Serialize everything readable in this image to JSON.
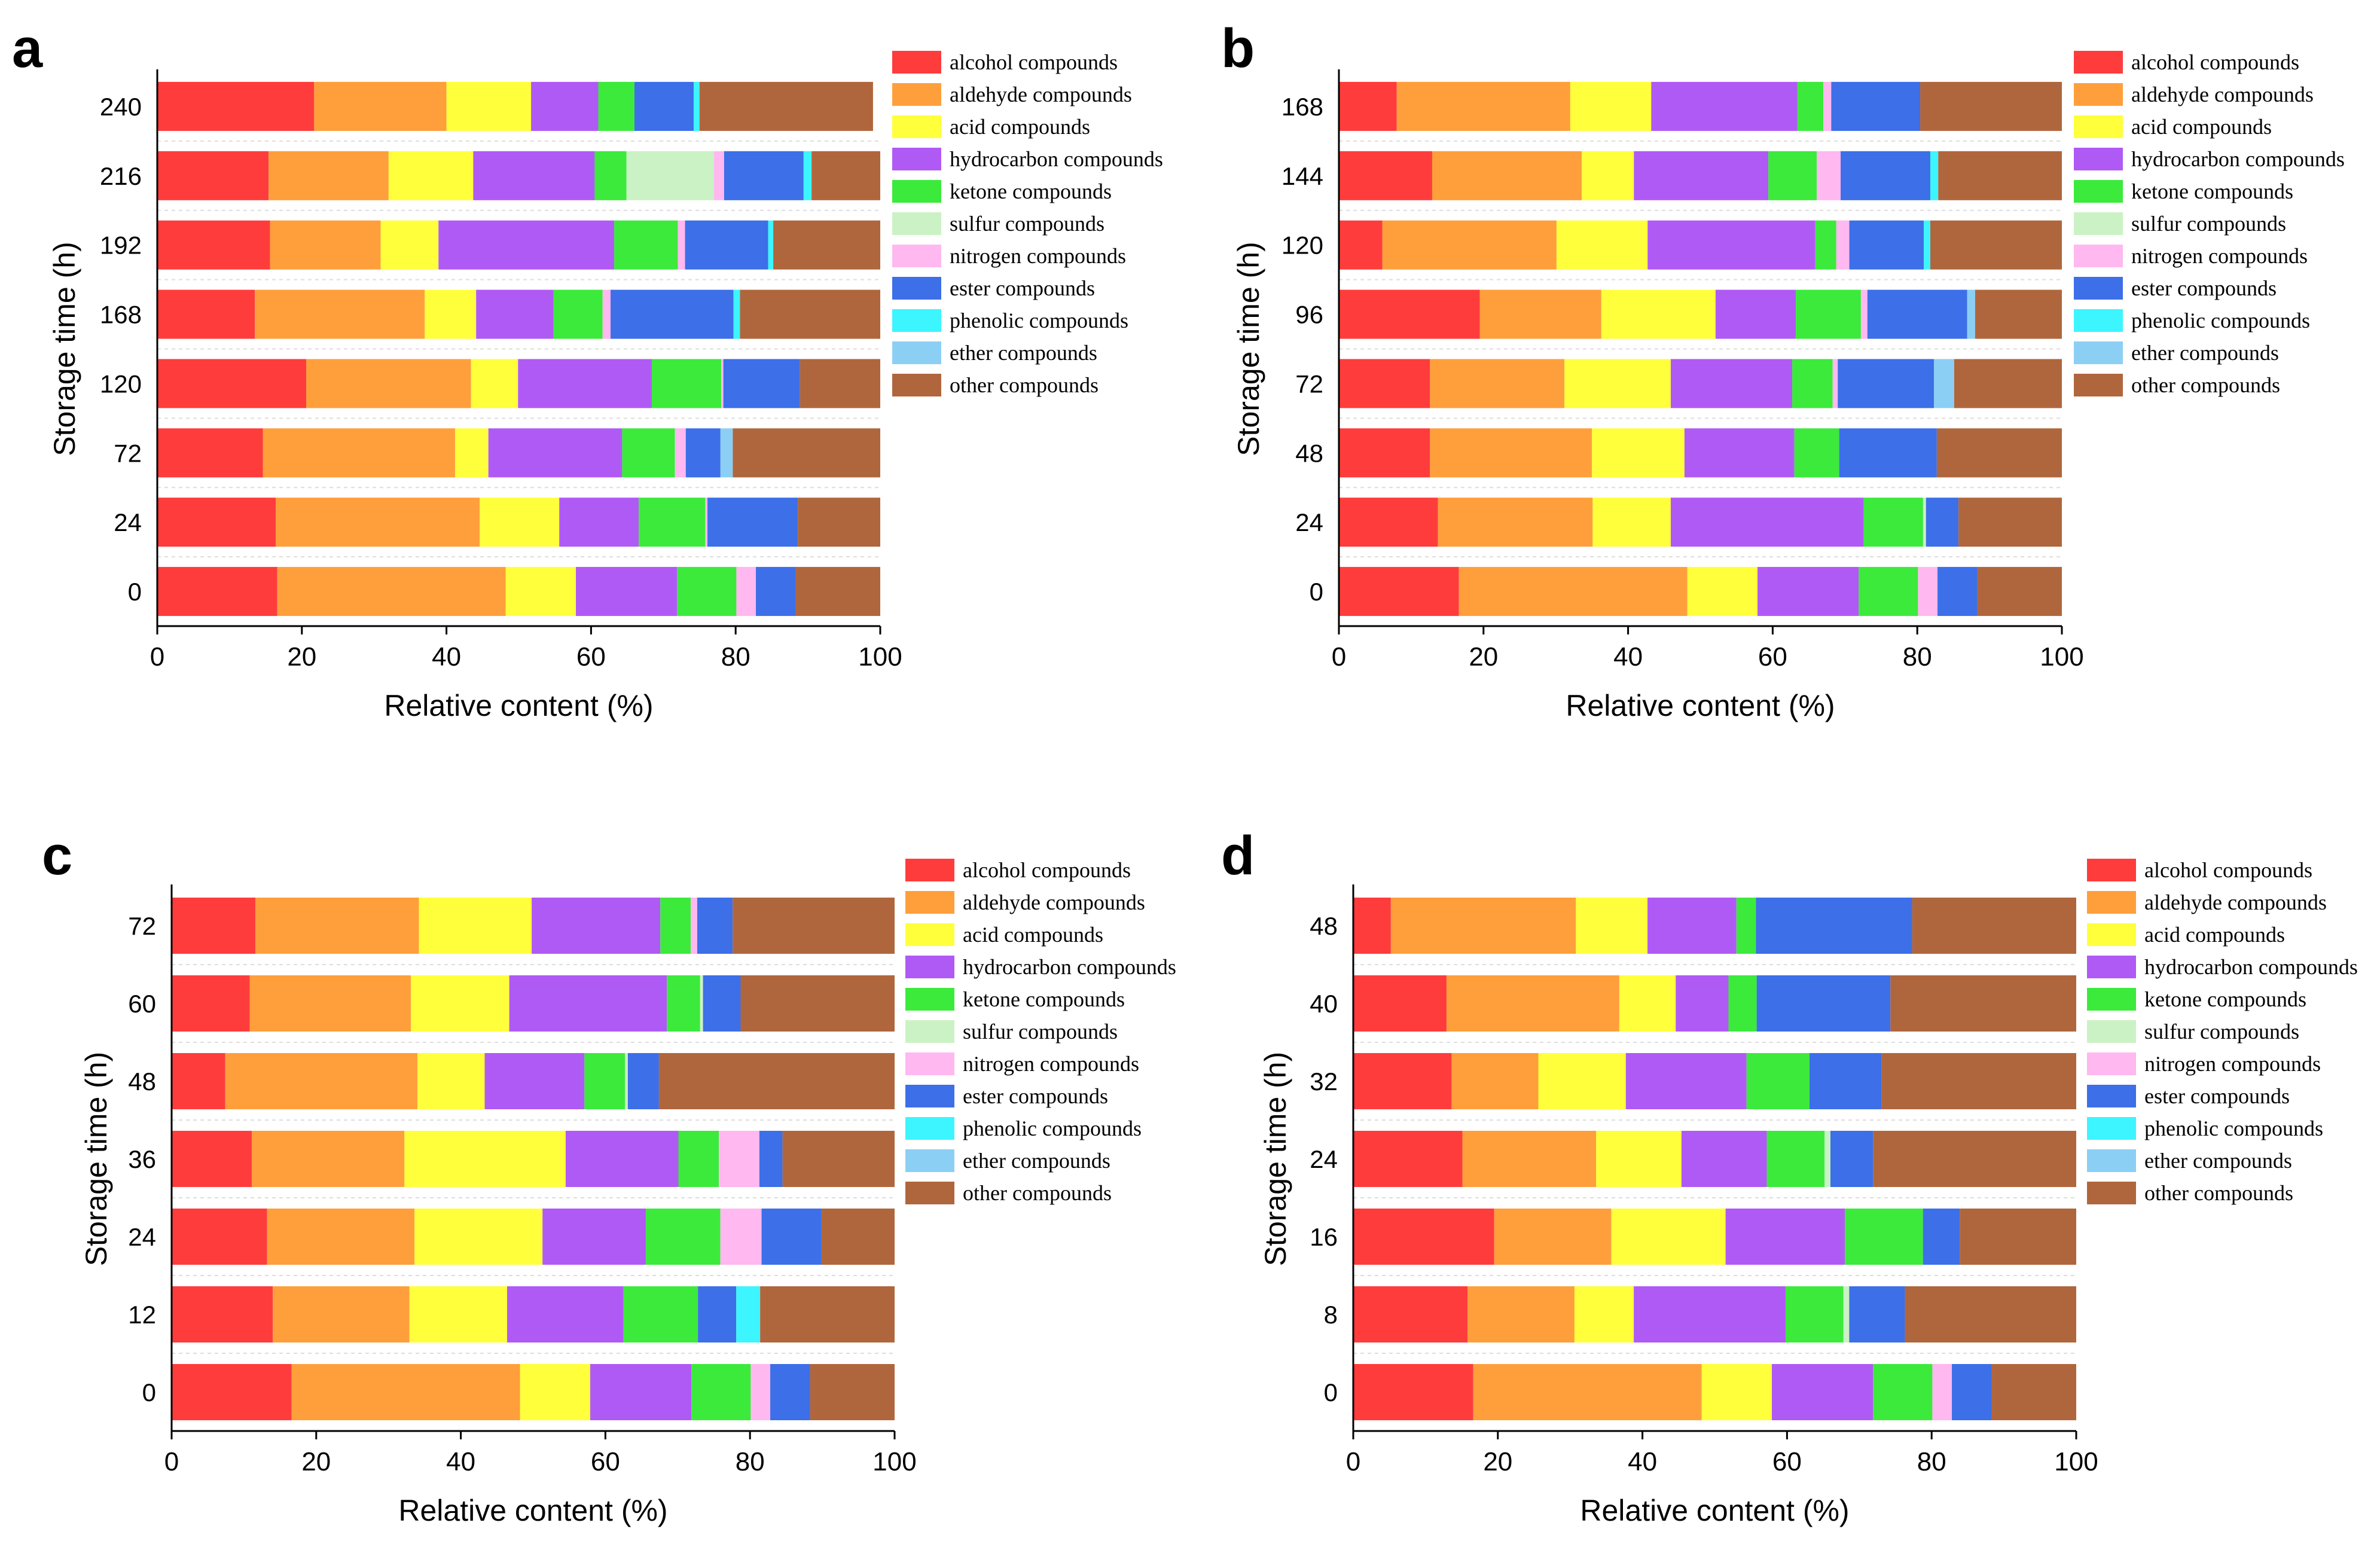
{
  "figure": {
    "legend_labels": [
      "alcohol compounds",
      "aldehyde compounds",
      "acid compounds",
      "hydrocarbon compounds",
      "ketone compounds",
      "sulfur compounds",
      "nitrogen compounds",
      "ester compounds",
      "phenolic compounds",
      "ether compounds",
      "other compounds"
    ],
    "colors": [
      "#ff3c3c",
      "#ff9f3c",
      "#ffff3c",
      "#b05af5",
      "#3cea3c",
      "#cbf2c4",
      "#ffb8f0",
      "#3c6fe8",
      "#3cf5ff",
      "#8ccff5",
      "#b0663c"
    ]
  },
  "chart_data": [
    {
      "panel": "a",
      "type": "bar",
      "orientation": "horizontal",
      "stacked": true,
      "xlabel": "Relative content (%)",
      "ylabel": "Storage time (h)",
      "xlim": [
        0,
        100
      ],
      "xticks": [
        "0",
        "20",
        "40",
        "60",
        "80",
        "100"
      ],
      "categories": [
        "0",
        "24",
        "72",
        "120",
        "168",
        "192",
        "216",
        "240"
      ],
      "series": [
        {
          "name": "alcohol compounds",
          "values": [
            16.6,
            16.4,
            14.6,
            20.6,
            13.5,
            15.6,
            15.4,
            21.7
          ]
        },
        {
          "name": "aldehyde compounds",
          "values": [
            31.6,
            28.2,
            26.6,
            22.8,
            23.5,
            15.3,
            16.6,
            18.3
          ]
        },
        {
          "name": "acid compounds",
          "values": [
            9.7,
            11.0,
            4.6,
            6.5,
            7.1,
            8.0,
            11.7,
            11.7
          ]
        },
        {
          "name": "hydrocarbon compounds",
          "values": [
            14.0,
            11.0,
            18.5,
            18.5,
            10.7,
            24.3,
            16.8,
            9.3
          ]
        },
        {
          "name": "ketone compounds",
          "values": [
            8.2,
            9.2,
            7.3,
            9.6,
            6.8,
            8.8,
            4.4,
            5.0
          ]
        },
        {
          "name": "sulfur compounds",
          "values": [
            0,
            0,
            0,
            0,
            0,
            0,
            12.1,
            0
          ]
        },
        {
          "name": "nitrogen compounds",
          "values": [
            2.7,
            0.3,
            1.5,
            0.3,
            1.1,
            1.0,
            1.4,
            0
          ]
        },
        {
          "name": "ester compounds",
          "values": [
            5.5,
            12.5,
            4.8,
            10.6,
            17.0,
            11.5,
            11.0,
            8.2
          ]
        },
        {
          "name": "phenolic compounds",
          "values": [
            0,
            0,
            0,
            0,
            0.9,
            0.7,
            1.1,
            0.8
          ]
        },
        {
          "name": "ether compounds",
          "values": [
            0,
            0,
            1.7,
            0,
            0,
            0,
            0,
            0
          ]
        },
        {
          "name": "other compounds",
          "values": [
            11.7,
            11.4,
            20.4,
            11.1,
            19.4,
            14.8,
            9.5,
            24.0
          ]
        }
      ]
    },
    {
      "panel": "b",
      "type": "bar",
      "orientation": "horizontal",
      "stacked": true,
      "xlabel": "Relative content (%)",
      "ylabel": "Storage time (h)",
      "xlim": [
        0,
        100
      ],
      "xticks": [
        "0",
        "20",
        "40",
        "60",
        "80",
        "100"
      ],
      "categories": [
        "0",
        "24",
        "48",
        "72",
        "96",
        "120",
        "144",
        "168"
      ],
      "series": [
        {
          "name": "alcohol compounds",
          "values": [
            16.6,
            13.7,
            12.6,
            12.6,
            19.5,
            6.0,
            12.9,
            8.0
          ]
        },
        {
          "name": "aldehyde compounds",
          "values": [
            31.6,
            21.4,
            22.4,
            18.6,
            16.8,
            24.1,
            20.7,
            24.0
          ]
        },
        {
          "name": "acid compounds",
          "values": [
            9.7,
            10.8,
            12.8,
            14.7,
            15.8,
            12.6,
            7.2,
            11.2
          ]
        },
        {
          "name": "hydrocarbon compounds",
          "values": [
            14.0,
            26.7,
            15.2,
            16.8,
            11.1,
            23.2,
            18.6,
            20.2
          ]
        },
        {
          "name": "ketone compounds",
          "values": [
            8.2,
            8.2,
            6.2,
            5.6,
            9.0,
            2.9,
            6.7,
            3.6
          ]
        },
        {
          "name": "sulfur compounds",
          "values": [
            0,
            0.4,
            0,
            0,
            0,
            0,
            0,
            0
          ]
        },
        {
          "name": "nitrogen compounds",
          "values": [
            2.7,
            0,
            0,
            0.7,
            0.9,
            1.8,
            3.3,
            1.1
          ]
        },
        {
          "name": "ester compounds",
          "values": [
            5.5,
            4.5,
            13.5,
            13.3,
            13.8,
            10.3,
            12.4,
            12.3
          ]
        },
        {
          "name": "phenolic compounds",
          "values": [
            0,
            0,
            0,
            0,
            0,
            0.9,
            1.1,
            0
          ]
        },
        {
          "name": "ether compounds",
          "values": [
            0,
            0,
            0,
            2.8,
            1.1,
            0,
            0,
            0
          ]
        },
        {
          "name": "other compounds",
          "values": [
            11.7,
            14.3,
            17.3,
            14.9,
            12.0,
            18.2,
            17.1,
            19.6
          ]
        }
      ]
    },
    {
      "panel": "c",
      "type": "bar",
      "orientation": "horizontal",
      "stacked": true,
      "xlabel": "Relative content (%)",
      "ylabel": "Storage time (h)",
      "xlim": [
        0,
        100
      ],
      "xticks": [
        "0",
        "20",
        "40",
        "60",
        "80",
        "100"
      ],
      "categories": [
        "0",
        "12",
        "24",
        "36",
        "48",
        "60",
        "72"
      ],
      "series": [
        {
          "name": "alcohol compounds",
          "values": [
            16.6,
            14.0,
            13.2,
            11.1,
            7.4,
            10.8,
            11.6
          ]
        },
        {
          "name": "aldehyde compounds",
          "values": [
            31.6,
            18.9,
            20.4,
            21.1,
            26.6,
            22.3,
            22.6
          ]
        },
        {
          "name": "acid compounds",
          "values": [
            9.7,
            13.5,
            17.7,
            22.3,
            9.3,
            13.6,
            15.6
          ]
        },
        {
          "name": "hydrocarbon compounds",
          "values": [
            14.0,
            16.1,
            14.3,
            15.6,
            13.8,
            21.8,
            17.8
          ]
        },
        {
          "name": "ketone compounds",
          "values": [
            8.2,
            10.3,
            10.3,
            5.6,
            5.6,
            4.6,
            4.2
          ]
        },
        {
          "name": "sulfur compounds",
          "values": [
            0,
            0,
            0,
            0,
            0.4,
            0.4,
            0
          ]
        },
        {
          "name": "nitrogen compounds",
          "values": [
            2.7,
            0,
            5.7,
            5.6,
            0,
            0,
            0.9
          ]
        },
        {
          "name": "ester compounds",
          "values": [
            5.5,
            5.3,
            8.3,
            3.2,
            4.3,
            5.2,
            4.9
          ]
        },
        {
          "name": "phenolic compounds",
          "values": [
            0,
            3.3,
            0,
            0,
            0,
            0,
            0
          ]
        },
        {
          "name": "ether compounds",
          "values": [
            0,
            0,
            0,
            0,
            0,
            0,
            0
          ]
        },
        {
          "name": "other compounds",
          "values": [
            11.7,
            18.6,
            10.1,
            15.5,
            32.6,
            21.3,
            22.4
          ]
        }
      ]
    },
    {
      "panel": "d",
      "type": "bar",
      "orientation": "horizontal",
      "stacked": true,
      "xlabel": "Relative content (%)",
      "ylabel": "Storage time (h)",
      "xlim": [
        0,
        100
      ],
      "xticks": [
        "0",
        "20",
        "40",
        "60",
        "80",
        "100"
      ],
      "categories": [
        "0",
        "8",
        "16",
        "24",
        "32",
        "40",
        "48"
      ],
      "series": [
        {
          "name": "alcohol compounds",
          "values": [
            16.6,
            15.8,
            19.5,
            15.1,
            13.6,
            12.9,
            5.2
          ]
        },
        {
          "name": "aldehyde compounds",
          "values": [
            31.6,
            14.8,
            16.2,
            18.5,
            12.0,
            23.9,
            25.6
          ]
        },
        {
          "name": "acid compounds",
          "values": [
            9.7,
            8.2,
            15.8,
            11.8,
            12.1,
            7.8,
            9.9
          ]
        },
        {
          "name": "hydrocarbon compounds",
          "values": [
            14.0,
            21.0,
            16.5,
            11.8,
            16.7,
            7.3,
            12.3
          ]
        },
        {
          "name": "ketone compounds",
          "values": [
            8.2,
            8.0,
            10.8,
            8.0,
            8.7,
            3.9,
            2.7
          ]
        },
        {
          "name": "sulfur compounds",
          "values": [
            0,
            0.8,
            0,
            0.8,
            0,
            0,
            0
          ]
        },
        {
          "name": "nitrogen compounds",
          "values": [
            2.7,
            0,
            0,
            0,
            0,
            0,
            0
          ]
        },
        {
          "name": "ester compounds",
          "values": [
            5.5,
            7.7,
            5.1,
            5.9,
            10.0,
            18.5,
            21.6
          ]
        },
        {
          "name": "phenolic compounds",
          "values": [
            0,
            0,
            0,
            0,
            0,
            0,
            0
          ]
        },
        {
          "name": "ether compounds",
          "values": [
            0,
            0,
            0,
            0,
            0,
            0,
            0
          ]
        },
        {
          "name": "other compounds",
          "values": [
            11.7,
            23.7,
            16.1,
            28.1,
            26.9,
            25.7,
            22.7
          ]
        }
      ]
    }
  ]
}
